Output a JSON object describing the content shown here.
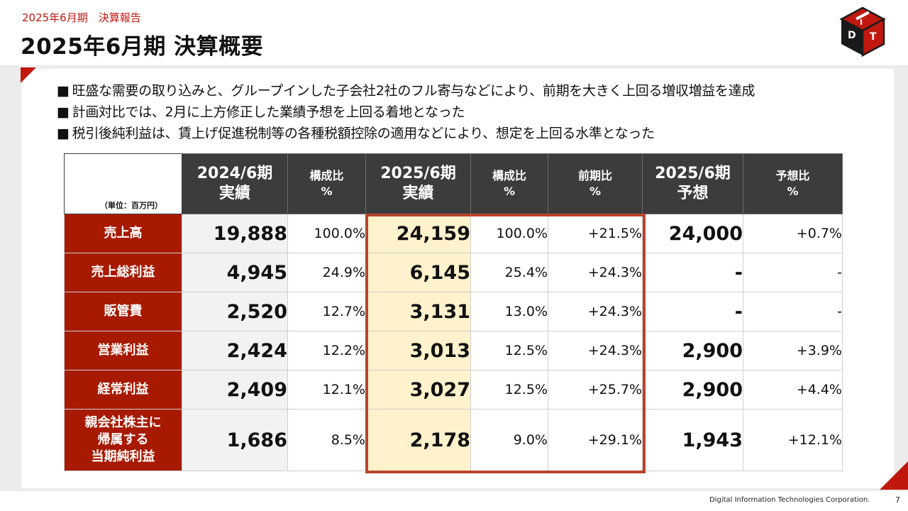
{
  "header": {
    "subtitle": "2025年6月期　決算報告",
    "title": "2025年6月期 決算概要"
  },
  "logo": {
    "icon": "dit-cube-logo",
    "letters": "DIT",
    "color": "#c0180f"
  },
  "bullets": [
    {
      "mark": "■",
      "text": "旺盛な需要の取り込みと、グループインした子会社2社のフル寄与などにより、前期を大きく上回る増収増益を達成"
    },
    {
      "mark": "■",
      "text": "計画対比では、2月に上方修正した業績予想を上回る着地となった"
    },
    {
      "mark": "■",
      "text": "税引後純利益は、賃上げ促進税制等の各種税額控除の適用などにより、想定を上回る水準となった"
    }
  ],
  "table": {
    "unit": "（単位：百万円）",
    "headers": [
      {
        "line1": "2024/6期",
        "line2": "実績"
      },
      {
        "line1": "構成比",
        "line2": "%"
      },
      {
        "line1": "2025/6期",
        "line2": "実績"
      },
      {
        "line1": "構成比",
        "line2": "%"
      },
      {
        "line1": "前期比",
        "line2": "%"
      },
      {
        "line1": "2025/6期",
        "line2": "予想"
      },
      {
        "line1": "予想比",
        "line2": "%"
      }
    ],
    "rows": [
      {
        "label": [
          "売上高"
        ],
        "prev": "19,888",
        "prev_ratio": "100.0%",
        "cur": "24,159",
        "cur_ratio": "100.0%",
        "yoy": "+21.5%",
        "forecast": "24,000",
        "vs_forecast": "+0.7%"
      },
      {
        "label": [
          "売上総利益"
        ],
        "prev": "4,945",
        "prev_ratio": "24.9%",
        "cur": "6,145",
        "cur_ratio": "25.4%",
        "yoy": "+24.3%",
        "forecast": "-",
        "vs_forecast": "-"
      },
      {
        "label": [
          "販管費"
        ],
        "prev": "2,520",
        "prev_ratio": "12.7%",
        "cur": "3,131",
        "cur_ratio": "13.0%",
        "yoy": "+24.3%",
        "forecast": "-",
        "vs_forecast": "-"
      },
      {
        "label": [
          "営業利益"
        ],
        "prev": "2,424",
        "prev_ratio": "12.2%",
        "cur": "3,013",
        "cur_ratio": "12.5%",
        "yoy": "+24.3%",
        "forecast": "2,900",
        "vs_forecast": "+3.9%"
      },
      {
        "label": [
          "経常利益"
        ],
        "prev": "2,409",
        "prev_ratio": "12.1%",
        "cur": "3,027",
        "cur_ratio": "12.5%",
        "yoy": "+25.7%",
        "forecast": "2,900",
        "vs_forecast": "+4.4%"
      },
      {
        "label": [
          "親会社株主に",
          "帰属する",
          "当期純利益"
        ],
        "prev": "1,686",
        "prev_ratio": "8.5%",
        "cur": "2,178",
        "cur_ratio": "9.0%",
        "yoy": "+29.1%",
        "forecast": "1,943",
        "vs_forecast": "+12.1%"
      }
    ]
  },
  "colors": {
    "accent": "#c0180f",
    "row_label_bg": "#a81a00",
    "header_bg": "#3c3c3c",
    "highlight_bg": "#fff2cc",
    "highlight_border": "#b6452c"
  },
  "footer": {
    "company": "Digital Information Technologies Corporation.",
    "page_number": "7"
  }
}
